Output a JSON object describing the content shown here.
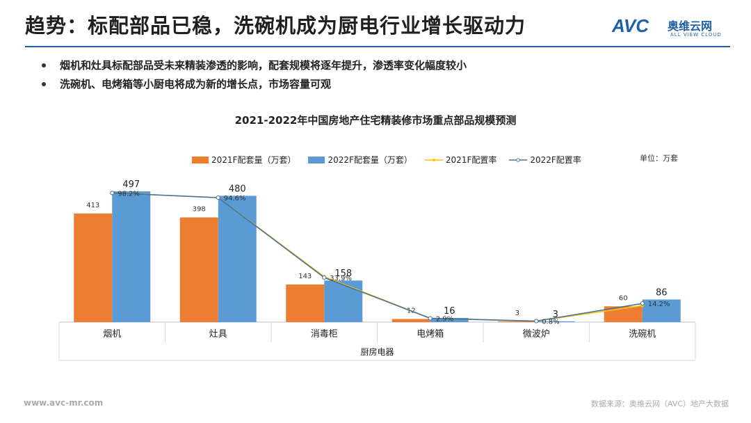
{
  "header": {
    "title": "趋势：标配部品已稳，洗碗机成为厨电行业增长驱动力",
    "logo_text": "AVC",
    "logo_cn": "奥维云网",
    "logo_en": "ALL VIEW CLOUD"
  },
  "bullets": [
    "烟机和灶具标配部品受未来精装渗透的影响，配套规模将逐年提升，渗透率变化幅度较小",
    "洗碗机、电烤箱等小厨电将成为新的增长点，市场容量可观"
  ],
  "footer": {
    "left": "www.avc-mr.com",
    "right": "数据来源：奥维云网（AVC）地产大数据"
  },
  "colors": {
    "accent": "#1e5fa8",
    "series_2021_bar": "#ed7d31",
    "series_2022_bar": "#5b9bd5",
    "series_2021_rate": "#ffc000",
    "series_2022_rate": "#44729a"
  },
  "chart_data": {
    "type": "bar",
    "title": "2021-2022年中国房地产住宅精装修市场重点部品规模预测",
    "unit_label": "单位：万套",
    "xlabel": "厨房电器",
    "legend_position": "top",
    "categories": [
      "烟机",
      "灶具",
      "消毒柜",
      "电烤箱",
      "微波炉",
      "洗碗机"
    ],
    "series": [
      {
        "name": "2021F配套量（万套）",
        "kind": "bar",
        "values": [
          413,
          398,
          143,
          12,
          3,
          60
        ]
      },
      {
        "name": "2022F配套量（万套）",
        "kind": "bar",
        "values": [
          497,
          480,
          158,
          16,
          3,
          86
        ]
      },
      {
        "name": "2021F配置率",
        "kind": "line",
        "values": [
          98.2,
          94.6,
          34.6,
          2.9,
          0.8,
          12.5
        ]
      },
      {
        "name": "2022F配置率",
        "kind": "line",
        "values": [
          98.2,
          94.6,
          33.9,
          2.9,
          0.8,
          14.2
        ]
      }
    ],
    "rate_labels": [
      "98.2%",
      "94.6%",
      "33.9%",
      "2.9%",
      "0.8%",
      "14.2%"
    ],
    "bar_ylim": [
      0,
      550
    ],
    "rate_ylim": [
      0,
      110
    ]
  }
}
